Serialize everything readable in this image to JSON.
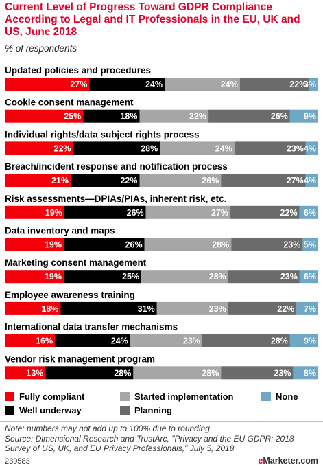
{
  "header": {
    "title": "Current Level of Progress Toward GDPR Compliance According to Legal and IT Professionals in the EU, UK and US, June 2018",
    "subtitle": "% of respondents"
  },
  "colors": {
    "fully_compliant": "#f3000b",
    "well_underway": "#000000",
    "started_implementation": "#a6a6a6",
    "planning": "#6b6b6b",
    "none": "#6fa8c6",
    "title": "#e4002b"
  },
  "chart_data": {
    "type": "bar",
    "orientation": "horizontal",
    "stacked": true,
    "categories": [
      "Updated policies and procedures",
      "Cookie consent management",
      "Individual rights/data subject rights process",
      "Breach/incident response and notification process",
      "Risk assessments—DPIAs/PIAs, inherent risk, etc.",
      "Data inventory and maps",
      "Marketing consent management",
      "Employee awareness training",
      "International data transfer mechanisms",
      "Vendor risk management program"
    ],
    "series": [
      {
        "name": "Fully compliant",
        "values": [
          27,
          25,
          22,
          21,
          19,
          19,
          19,
          18,
          16,
          13
        ]
      },
      {
        "name": "Well underway",
        "values": [
          24,
          18,
          28,
          22,
          26,
          26,
          25,
          31,
          24,
          28
        ]
      },
      {
        "name": "Started implementation",
        "values": [
          24,
          22,
          24,
          26,
          27,
          28,
          28,
          23,
          23,
          28
        ]
      },
      {
        "name": "Planning",
        "values": [
          22,
          26,
          23,
          27,
          22,
          23,
          23,
          22,
          28,
          23
        ]
      },
      {
        "name": "None",
        "values": [
          3,
          9,
          4,
          4,
          6,
          5,
          6,
          7,
          9,
          8
        ]
      }
    ],
    "legend_position": "bottom"
  },
  "legend": {
    "fully_compliant": "Fully compliant",
    "well_underway": "Well underway",
    "started_implementation": "Started implementation",
    "planning": "Planning",
    "none": "None"
  },
  "footer": {
    "note": "Note: numbers may not add up to 100% due to rounding",
    "source": "Source: Dimensional Research and TrustArc, \"Privacy and the EU GDPR: 2018 Survey of US, UK, and EU Privacy Professionals,\" July 5, 2018",
    "chart_id": "239583",
    "brand_e": "e",
    "brand_rest": "Marketer",
    "brand_suffix": ".com"
  }
}
